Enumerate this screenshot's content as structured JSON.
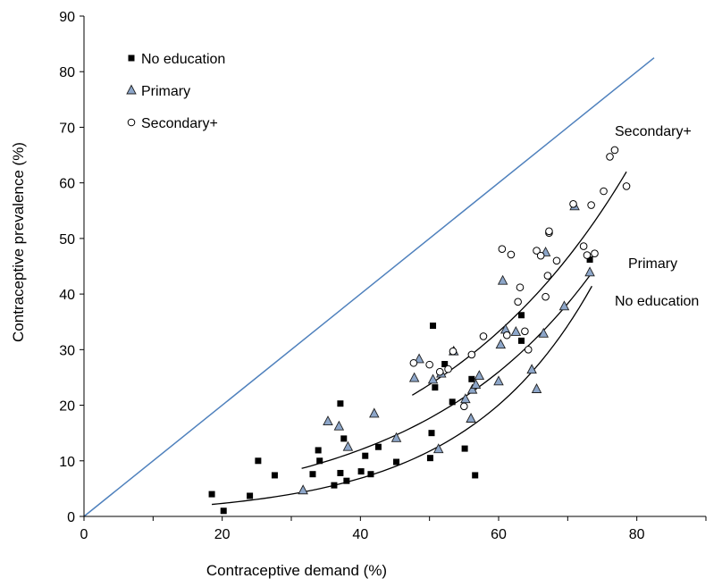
{
  "chart_data": {
    "type": "scatter",
    "title": "",
    "xlabel": "Contraceptive demand (%)",
    "ylabel": "Contraceptive prevalence (%)",
    "xlim": [
      0,
      90
    ],
    "ylim": [
      0,
      90
    ],
    "xticks": [
      0,
      20,
      40,
      60,
      80
    ],
    "yticks": [
      0,
      10,
      20,
      30,
      40,
      50,
      60,
      70,
      80,
      90
    ],
    "grid": false,
    "legend_position": "top-left",
    "reference_line": {
      "from": [
        0,
        0
      ],
      "to": [
        82.5,
        82.5
      ],
      "color": "#4f81bd"
    },
    "series": [
      {
        "name": "No education",
        "marker": "square",
        "color": "#000000",
        "points": [
          [
            18.5,
            4
          ],
          [
            20.2,
            1
          ],
          [
            24,
            3.7
          ],
          [
            25.2,
            10
          ],
          [
            27.6,
            7.4
          ],
          [
            33.1,
            7.6
          ],
          [
            33.9,
            11.9
          ],
          [
            34.1,
            10
          ],
          [
            36.2,
            5.6
          ],
          [
            37.1,
            7.8
          ],
          [
            37.1,
            20.3
          ],
          [
            37.6,
            14
          ],
          [
            38,
            6.4
          ],
          [
            40.1,
            8.1
          ],
          [
            40.7,
            10.9
          ],
          [
            41.5,
            7.6
          ],
          [
            42.6,
            12.5
          ],
          [
            45.2,
            9.8
          ],
          [
            50.1,
            10.5
          ],
          [
            50.3,
            15
          ],
          [
            50.5,
            34.3
          ],
          [
            50.8,
            23.2
          ],
          [
            52.2,
            27.4
          ],
          [
            53.3,
            20.6
          ],
          [
            55.1,
            12.2
          ],
          [
            56.1,
            24.7
          ],
          [
            56.6,
            7.4
          ],
          [
            63.3,
            36.2
          ],
          [
            63.3,
            31.6
          ],
          [
            73.2,
            46.2
          ]
        ]
      },
      {
        "name": "Primary",
        "marker": "triangle",
        "color": "#8da6c9",
        "points": [
          [
            31.7,
            4.7
          ],
          [
            35.3,
            17.1
          ],
          [
            36.9,
            16.2
          ],
          [
            38.2,
            12.5
          ],
          [
            42,
            18.5
          ],
          [
            45.2,
            14.1
          ],
          [
            47.8,
            24.9
          ],
          [
            48.5,
            28.3
          ],
          [
            50.5,
            24.6
          ],
          [
            51.3,
            12.1
          ],
          [
            51.7,
            25.7
          ],
          [
            53.5,
            29.7
          ],
          [
            55.2,
            21.1
          ],
          [
            56,
            17.6
          ],
          [
            56.2,
            22.8
          ],
          [
            56.7,
            23.7
          ],
          [
            57.2,
            25.3
          ],
          [
            60,
            24.3
          ],
          [
            60.3,
            30.9
          ],
          [
            60.6,
            42.4
          ],
          [
            61,
            33.6
          ],
          [
            62.5,
            33.2
          ],
          [
            64.8,
            26.4
          ],
          [
            65.5,
            22.9
          ],
          [
            66.5,
            32.9
          ],
          [
            66.8,
            47.5
          ],
          [
            69.5,
            37.8
          ],
          [
            71,
            55.8
          ],
          [
            73.2,
            43.9
          ]
        ]
      },
      {
        "name": "Secondary+",
        "marker": "circle",
        "color": "#000000",
        "points": [
          [
            47.7,
            27.6
          ],
          [
            50,
            27.3
          ],
          [
            51.5,
            26
          ],
          [
            52.7,
            26.5
          ],
          [
            53.4,
            29.7
          ],
          [
            55,
            19.8
          ],
          [
            56.1,
            29.1
          ],
          [
            57.8,
            32.4
          ],
          [
            60.5,
            48.1
          ],
          [
            61.2,
            32.6
          ],
          [
            61.8,
            47.1
          ],
          [
            62.8,
            38.6
          ],
          [
            63.1,
            41.2
          ],
          [
            63.8,
            33.3
          ],
          [
            64.3,
            30
          ],
          [
            65.5,
            47.8
          ],
          [
            66.1,
            46.9
          ],
          [
            66.8,
            39.5
          ],
          [
            67.1,
            43.3
          ],
          [
            67.3,
            51
          ],
          [
            67.3,
            51.3
          ],
          [
            68.4,
            46
          ],
          [
            70.8,
            56.2
          ],
          [
            72.3,
            48.6
          ],
          [
            72.8,
            47
          ],
          [
            73.4,
            56
          ],
          [
            73.9,
            47.3
          ],
          [
            75.2,
            58.5
          ],
          [
            76.1,
            64.7
          ],
          [
            76.8,
            65.9
          ],
          [
            78.5,
            59.4
          ]
        ]
      }
    ],
    "trendlines": [
      {
        "series": "Secondary+",
        "label": "Secondary+",
        "x_range": [
          47.5,
          78.5
        ],
        "a": 4.4,
        "b": 0.0337
      },
      {
        "series": "Primary",
        "label": "Primary",
        "x_range": [
          31.5,
          73.5
        ],
        "a": 2.55,
        "b": 0.0387
      },
      {
        "series": "No education",
        "label": "No education",
        "x_range": [
          18.5,
          73.5
        ],
        "a": 0.8,
        "b": 0.0537
      }
    ]
  }
}
